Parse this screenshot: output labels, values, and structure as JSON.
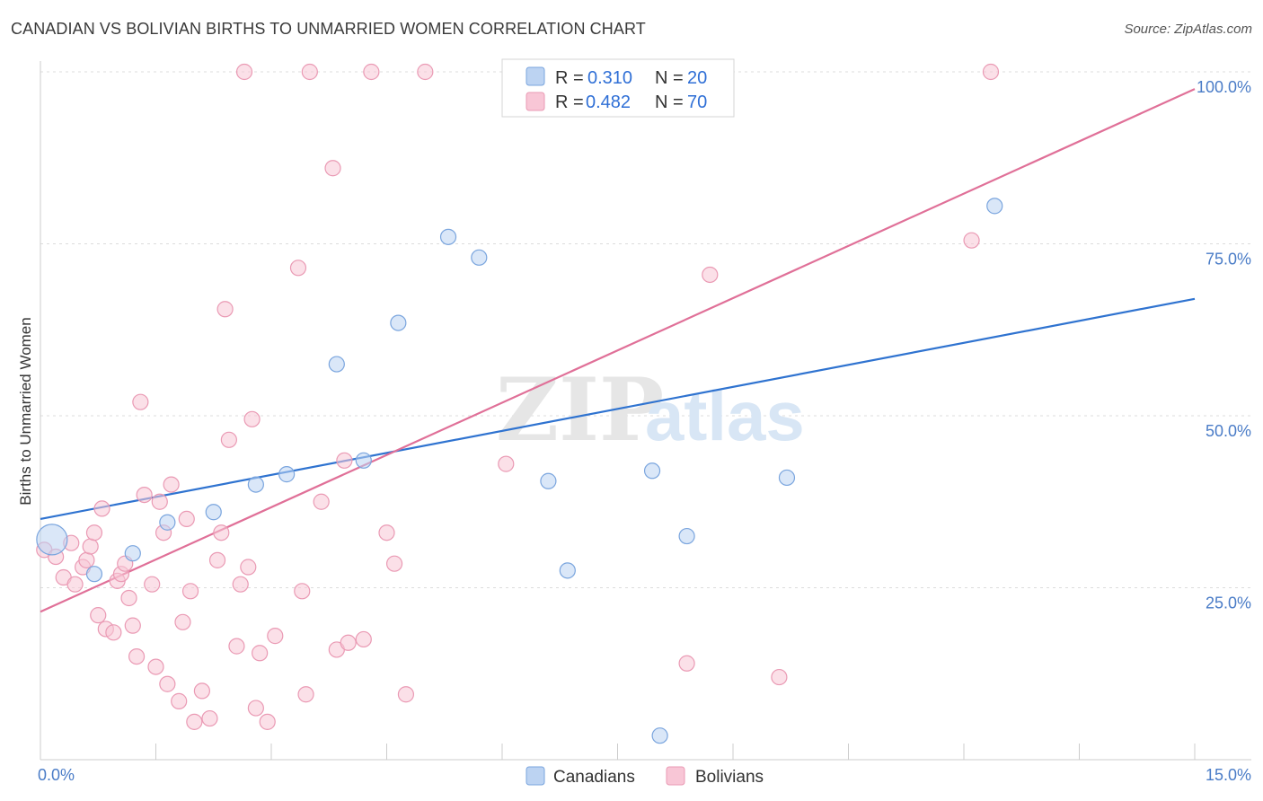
{
  "header": {
    "title": "CANADIAN VS BOLIVIAN BIRTHS TO UNMARRIED WOMEN CORRELATION CHART",
    "source": "Source: ZipAtlas.com"
  },
  "watermark": {
    "zip": "ZIP",
    "atlas": "atlas"
  },
  "colors": {
    "canadians_fill": "#bcd3f2",
    "canadians_stroke": "#7aa5de",
    "canadians_line": "#2f73d0",
    "bolivians_fill": "#f8c6d6",
    "bolivians_stroke": "#ea9ab4",
    "bolivians_line": "#e07098",
    "grid": "#dcdcdc",
    "tick_text": "#4a7cc7"
  },
  "chart_data": {
    "type": "scatter",
    "title": "CANADIAN VS BOLIVIAN BIRTHS TO UNMARRIED WOMEN CORRELATION CHART",
    "xlabel": "",
    "ylabel": "Births to Unmarried Women",
    "xlim": [
      0,
      15
    ],
    "ylim": [
      0,
      100
    ],
    "x_tick_labels": [
      "0.0%",
      "15.0%"
    ],
    "y_ticks": [
      25,
      50,
      75,
      100
    ],
    "y_tick_labels": [
      "25.0%",
      "50.0%",
      "75.0%",
      "100.0%"
    ],
    "grid": true,
    "legend_placement": "top-center",
    "legend": [
      {
        "name": "Canadians",
        "r_label": "R =",
        "r": "0.310",
        "n_label": "N =",
        "n": "20"
      },
      {
        "name": "Bolivians",
        "r_label": "R =",
        "r": "0.482",
        "n_label": "N =",
        "n": "70"
      }
    ],
    "series": [
      {
        "name": "Canadians",
        "trend": {
          "x": [
            0,
            15
          ],
          "y": [
            35,
            67
          ]
        },
        "points": [
          {
            "x": 0.15,
            "y": 32.0,
            "big": true
          },
          {
            "x": 0.7,
            "y": 27.0
          },
          {
            "x": 1.2,
            "y": 30.0
          },
          {
            "x": 1.65,
            "y": 34.5
          },
          {
            "x": 2.25,
            "y": 36.0
          },
          {
            "x": 2.8,
            "y": 40.0
          },
          {
            "x": 3.2,
            "y": 41.5
          },
          {
            "x": 3.85,
            "y": 57.5
          },
          {
            "x": 4.2,
            "y": 43.5
          },
          {
            "x": 4.65,
            "y": 63.5
          },
          {
            "x": 5.3,
            "y": 76.0
          },
          {
            "x": 5.7,
            "y": 73.0
          },
          {
            "x": 6.6,
            "y": 40.5
          },
          {
            "x": 6.85,
            "y": 27.5
          },
          {
            "x": 7.45,
            "y": 100.0
          },
          {
            "x": 7.95,
            "y": 42.0
          },
          {
            "x": 8.05,
            "y": 3.5
          },
          {
            "x": 8.4,
            "y": 32.5
          },
          {
            "x": 9.7,
            "y": 41.0
          },
          {
            "x": 12.4,
            "y": 80.5
          }
        ]
      },
      {
        "name": "Bolivians",
        "trend": {
          "x": [
            0,
            15
          ],
          "y": [
            21.5,
            97.5
          ]
        },
        "points": [
          {
            "x": 0.05,
            "y": 30.5
          },
          {
            "x": 0.2,
            "y": 29.5
          },
          {
            "x": 0.3,
            "y": 26.5
          },
          {
            "x": 0.4,
            "y": 31.5
          },
          {
            "x": 0.45,
            "y": 25.5
          },
          {
            "x": 0.55,
            "y": 28.0
          },
          {
            "x": 0.6,
            "y": 29.0
          },
          {
            "x": 0.65,
            "y": 31.0
          },
          {
            "x": 0.7,
            "y": 33.0
          },
          {
            "x": 0.8,
            "y": 36.5
          },
          {
            "x": 0.75,
            "y": 21.0
          },
          {
            "x": 0.85,
            "y": 19.0
          },
          {
            "x": 0.95,
            "y": 18.5
          },
          {
            "x": 1.0,
            "y": 26.0
          },
          {
            "x": 1.05,
            "y": 27.0
          },
          {
            "x": 1.1,
            "y": 28.5
          },
          {
            "x": 1.15,
            "y": 23.5
          },
          {
            "x": 1.2,
            "y": 19.5
          },
          {
            "x": 1.25,
            "y": 15.0
          },
          {
            "x": 1.3,
            "y": 52.0
          },
          {
            "x": 1.35,
            "y": 38.5
          },
          {
            "x": 1.45,
            "y": 25.5
          },
          {
            "x": 1.5,
            "y": 13.5
          },
          {
            "x": 1.55,
            "y": 37.5
          },
          {
            "x": 1.6,
            "y": 33.0
          },
          {
            "x": 1.65,
            "y": 11.0
          },
          {
            "x": 1.7,
            "y": 40.0
          },
          {
            "x": 1.8,
            "y": 8.5
          },
          {
            "x": 1.85,
            "y": 20.0
          },
          {
            "x": 1.9,
            "y": 35.0
          },
          {
            "x": 1.95,
            "y": 24.5
          },
          {
            "x": 2.0,
            "y": 5.5
          },
          {
            "x": 2.1,
            "y": 10.0
          },
          {
            "x": 2.2,
            "y": 6.0
          },
          {
            "x": 2.3,
            "y": 29.0
          },
          {
            "x": 2.35,
            "y": 33.0
          },
          {
            "x": 2.4,
            "y": 65.5
          },
          {
            "x": 2.55,
            "y": 16.5
          },
          {
            "x": 2.6,
            "y": 25.5
          },
          {
            "x": 2.65,
            "y": 100.0
          },
          {
            "x": 2.7,
            "y": 28.0
          },
          {
            "x": 2.75,
            "y": 49.5
          },
          {
            "x": 2.8,
            "y": 7.5
          },
          {
            "x": 2.85,
            "y": 15.5
          },
          {
            "x": 2.95,
            "y": 5.5
          },
          {
            "x": 3.05,
            "y": 18.0
          },
          {
            "x": 3.35,
            "y": 71.5
          },
          {
            "x": 3.4,
            "y": 24.5
          },
          {
            "x": 3.45,
            "y": 9.5
          },
          {
            "x": 3.5,
            "y": 100.0
          },
          {
            "x": 3.65,
            "y": 37.5
          },
          {
            "x": 3.8,
            "y": 86.0
          },
          {
            "x": 3.85,
            "y": 16.0
          },
          {
            "x": 4.0,
            "y": 17.0
          },
          {
            "x": 4.2,
            "y": 17.5
          },
          {
            "x": 4.3,
            "y": 100.0
          },
          {
            "x": 4.5,
            "y": 33.0
          },
          {
            "x": 4.6,
            "y": 28.5
          },
          {
            "x": 4.75,
            "y": 9.5
          },
          {
            "x": 5.0,
            "y": 100.0
          },
          {
            "x": 8.0,
            "y": 100.0
          },
          {
            "x": 8.4,
            "y": 14.0
          },
          {
            "x": 8.65,
            "y": 100.0
          },
          {
            "x": 8.7,
            "y": 70.5
          },
          {
            "x": 9.6,
            "y": 12.0
          },
          {
            "x": 12.1,
            "y": 75.5
          },
          {
            "x": 12.35,
            "y": 100.0
          },
          {
            "x": 6.05,
            "y": 43.0
          },
          {
            "x": 3.95,
            "y": 43.5
          },
          {
            "x": 2.45,
            "y": 46.5
          }
        ]
      }
    ]
  }
}
